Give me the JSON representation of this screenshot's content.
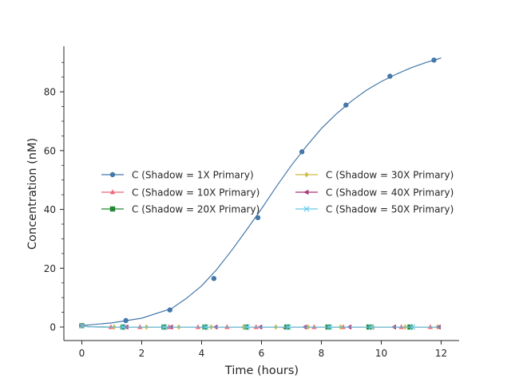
{
  "chart_data": {
    "type": "line",
    "xlabel": "Time (hours)",
    "ylabel": "Concentration (nM)",
    "xlim": [
      -0.6,
      12.6
    ],
    "ylim": [
      -4.6,
      95.5
    ],
    "xticks": [
      0,
      2,
      4,
      6,
      8,
      10,
      12
    ],
    "yticks": [
      0,
      20,
      40,
      60,
      80
    ],
    "grid": false,
    "legend_placement": "center",
    "series": [
      {
        "name": "C (Shadow = 1X Primary)",
        "color": "#4477aa",
        "marker": "circle",
        "x": [
          0,
          1,
          2,
          3,
          3.5,
          4,
          4.5,
          5,
          5.5,
          6,
          6.5,
          7,
          7.5,
          8,
          8.5,
          9,
          9.5,
          10,
          10.5,
          11,
          11.5,
          12
        ],
        "y": [
          0.5,
          1.4,
          3.0,
          6.3,
          9.8,
          14.0,
          19.5,
          26.0,
          33.0,
          40.2,
          47.8,
          55.0,
          61.5,
          67.5,
          72.5,
          76.8,
          80.5,
          83.5,
          86.0,
          88.2,
          90.0,
          91.5
        ],
        "marker_x": [
          0,
          1.47,
          2.94,
          4.41,
          5.88,
          7.35,
          8.82,
          10.29,
          11.76
        ],
        "marker_y": [
          0.5,
          2.2,
          5.8,
          16.5,
          37.2,
          59.6,
          75.5,
          85.3,
          90.8
        ]
      },
      {
        "name": "C (Shadow = 10X Primary)",
        "color": "#ee6677",
        "marker": "triangle-up",
        "x": [
          0,
          0.2,
          0.5,
          1,
          12
        ],
        "y": [
          0.5,
          0.2,
          0.05,
          0,
          0
        ],
        "marker_x": [
          0,
          0.97,
          1.94,
          2.91,
          3.88,
          4.85,
          5.82,
          6.79,
          7.76,
          8.73,
          9.7,
          10.67,
          11.64
        ],
        "marker_y": [
          0.5,
          0,
          0,
          0,
          0,
          0,
          0,
          0,
          0,
          0,
          0,
          0,
          0
        ]
      },
      {
        "name": "C (Shadow = 20X Primary)",
        "color": "#228833",
        "marker": "square",
        "x": [
          0,
          0.2,
          0.5,
          1,
          12
        ],
        "y": [
          0.5,
          0.15,
          0.03,
          0,
          0
        ],
        "marker_x": [
          0,
          1.37,
          2.74,
          4.11,
          5.48,
          6.85,
          8.22,
          9.59,
          10.96
        ],
        "marker_y": [
          0.5,
          0,
          0,
          0,
          0,
          0,
          0,
          0,
          0
        ]
      },
      {
        "name": "C (Shadow = 30X Primary)",
        "color": "#ccbb44",
        "marker": "diamond",
        "x": [
          0,
          0.2,
          0.5,
          1,
          12
        ],
        "y": [
          0.5,
          0.12,
          0.02,
          0,
          0
        ],
        "marker_x": [
          0,
          1.08,
          2.16,
          3.24,
          4.32,
          5.4,
          6.48,
          7.56,
          8.64,
          9.72,
          10.8,
          11.88
        ],
        "marker_y": [
          0.5,
          0,
          0,
          0,
          0,
          0,
          0,
          0,
          0,
          0,
          0,
          0
        ]
      },
      {
        "name": "C (Shadow = 40X Primary)",
        "color": "#aa3377",
        "marker": "triangle-left",
        "x": [
          0,
          0.2,
          0.5,
          1,
          12
        ],
        "y": [
          0.5,
          0.1,
          0.01,
          0,
          0
        ],
        "marker_x": [
          0,
          1.49,
          2.98,
          4.47,
          5.96,
          7.45,
          8.94,
          10.43,
          11.92
        ],
        "marker_y": [
          0.5,
          0,
          0,
          0,
          0,
          0,
          0,
          0,
          0
        ]
      },
      {
        "name": "C (Shadow = 50X Primary)",
        "color": "#66ccee",
        "marker": "x",
        "x": [
          0,
          0.2,
          0.5,
          1,
          12
        ],
        "y": [
          0.5,
          0.08,
          0.01,
          0,
          0
        ],
        "marker_x": [
          0,
          1.38,
          2.76,
          4.14,
          5.52,
          6.9,
          8.28,
          9.66,
          11.04
        ],
        "marker_y": [
          0.5,
          0,
          0,
          0,
          0,
          0,
          0,
          0,
          0
        ]
      }
    ],
    "legend_columns": [
      [
        "C (Shadow = 1X Primary)",
        "C (Shadow = 10X Primary)",
        "C (Shadow = 20X Primary)"
      ],
      [
        "C (Shadow = 30X Primary)",
        "C (Shadow = 40X Primary)",
        "C (Shadow = 50X Primary)"
      ]
    ]
  }
}
